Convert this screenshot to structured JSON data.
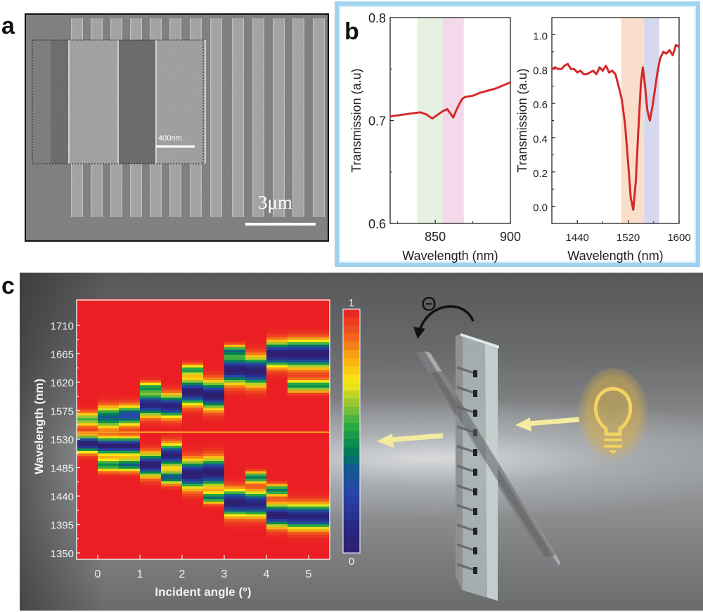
{
  "panels": {
    "a": {
      "label": "a",
      "inset_scale_bar": "400nm",
      "main_scale_bar": "3μm"
    },
    "b": {
      "label": "b"
    },
    "c": {
      "label": "c",
      "rotation_symbol": "Θ",
      "colorbar": {
        "max_label": "1",
        "min_label": "0"
      },
      "icons": [
        "rotation-arrow-icon",
        "light-bulb-icon",
        "incident-light-arrow-icon",
        "transmitted-light-arrow-icon",
        "grating-sample-icon"
      ]
    }
  },
  "colors": {
    "curve": "#d42a2a",
    "band_green": "#e6f1e1",
    "band_pink": "#f4d9ea",
    "band_orange": "#f9dfcb",
    "band_blue": "#d6d8ee",
    "frame": "#9fd3ef",
    "bulb": "#f3d35e",
    "arrow": "#f3eba0"
  },
  "chart_data": [
    {
      "type": "line",
      "id": "b-left",
      "title": "",
      "xlabel": "Wavelength (nm)",
      "ylabel": "Transmission (a.u)",
      "xlim": [
        820,
        900
      ],
      "ylim": [
        0.6,
        0.8
      ],
      "xticks": [
        850,
        900
      ],
      "xtick_labels": [
        "850",
        "900"
      ],
      "yticks": [
        0.6,
        0.7,
        0.8
      ],
      "ytick_labels": [
        "0.6",
        "0.7",
        "0.8"
      ],
      "shaded_bands": [
        {
          "from": 838,
          "to": 855,
          "color": "band_green"
        },
        {
          "from": 855,
          "to": 869,
          "color": "band_pink"
        }
      ],
      "series": [
        {
          "name": "Transmission",
          "x": [
            820,
            825,
            830,
            835,
            840,
            844,
            848,
            852,
            855,
            858,
            860,
            862,
            864,
            866,
            868,
            870,
            875,
            880,
            885,
            890,
            895,
            900
          ],
          "y": [
            0.704,
            0.705,
            0.706,
            0.707,
            0.708,
            0.706,
            0.702,
            0.706,
            0.709,
            0.711,
            0.707,
            0.703,
            0.71,
            0.716,
            0.721,
            0.723,
            0.724,
            0.727,
            0.729,
            0.731,
            0.734,
            0.737
          ]
        }
      ]
    },
    {
      "type": "line",
      "id": "b-right",
      "title": "",
      "xlabel": "Wavelength (nm)",
      "ylabel": "Transmission (a.u)",
      "xlim": [
        1400,
        1600
      ],
      "ylim": [
        -0.1,
        1.1
      ],
      "xticks": [
        1440,
        1520,
        1600
      ],
      "xtick_labels": [
        "1440",
        "1520",
        "1600"
      ],
      "yticks": [
        0.0,
        0.2,
        0.4,
        0.6,
        0.8,
        1.0
      ],
      "ytick_labels": [
        "0.0",
        "0.2",
        "0.4",
        "0.6",
        "0.8",
        "1.0"
      ],
      "shaded_bands": [
        {
          "from": 1509,
          "to": 1545,
          "color": "band_orange"
        },
        {
          "from": 1545,
          "to": 1569,
          "color": "band_blue"
        }
      ],
      "series": [
        {
          "name": "Transmission",
          "x": [
            1400,
            1405,
            1410,
            1415,
            1420,
            1425,
            1430,
            1435,
            1440,
            1445,
            1450,
            1455,
            1460,
            1465,
            1470,
            1475,
            1480,
            1485,
            1490,
            1495,
            1500,
            1505,
            1510,
            1515,
            1520,
            1524,
            1528,
            1532,
            1536,
            1540,
            1543,
            1546,
            1550,
            1554,
            1558,
            1562,
            1566,
            1570,
            1575,
            1580,
            1585,
            1590,
            1595,
            1600
          ],
          "y": [
            0.8,
            0.81,
            0.8,
            0.8,
            0.82,
            0.83,
            0.8,
            0.8,
            0.78,
            0.79,
            0.77,
            0.77,
            0.78,
            0.79,
            0.77,
            0.81,
            0.79,
            0.82,
            0.78,
            0.79,
            0.77,
            0.7,
            0.62,
            0.48,
            0.25,
            0.05,
            -0.02,
            0.15,
            0.45,
            0.72,
            0.81,
            0.72,
            0.56,
            0.5,
            0.58,
            0.68,
            0.78,
            0.86,
            0.9,
            0.89,
            0.91,
            0.88,
            0.94,
            0.93
          ]
        }
      ]
    },
    {
      "type": "heatmap",
      "id": "c-heatmap",
      "title": "",
      "xlabel": "Incident angle (°)",
      "ylabel": "Wavelength (nm)",
      "xlim": [
        -0.5,
        5.5
      ],
      "ylim": [
        1340,
        1750
      ],
      "xticks": [
        0,
        1,
        2,
        3,
        4,
        5
      ],
      "xtick_labels": [
        "0",
        "1",
        "2",
        "3",
        "4",
        "5"
      ],
      "yticks": [
        1350,
        1395,
        1440,
        1485,
        1530,
        1575,
        1620,
        1665,
        1710
      ],
      "ytick_labels": [
        "1350",
        "1395",
        "1440",
        "1485",
        "1530",
        "1575",
        "1620",
        "1665",
        "1710"
      ],
      "colorbar_range": [
        0,
        1
      ],
      "columns_angle": [
        0,
        0.5,
        1,
        1.5,
        2,
        2.5,
        3,
        3.5,
        4,
        4.5,
        5,
        5.5
      ],
      "dips": [
        {
          "angle": 0,
          "dips": [
            {
              "center": 1523,
              "width": 30,
              "depth": 1.0
            },
            {
              "center": 1562,
              "width": 26,
              "depth": 0.45
            }
          ]
        },
        {
          "angle": 0.5,
          "dips": [
            {
              "center": 1520,
              "width": 30,
              "depth": 1.0
            },
            {
              "center": 1565,
              "width": 40,
              "depth": 0.65
            },
            {
              "center": 1490,
              "width": 24,
              "depth": 0.55
            }
          ]
        },
        {
          "angle": 1,
          "dips": [
            {
              "center": 1520,
              "width": 30,
              "depth": 1.0
            },
            {
              "center": 1568,
              "width": 36,
              "depth": 0.75
            },
            {
              "center": 1490,
              "width": 24,
              "depth": 0.65
            }
          ]
        },
        {
          "angle": 1.5,
          "dips": [
            {
              "center": 1585,
              "width": 40,
              "depth": 0.95
            },
            {
              "center": 1490,
              "width": 40,
              "depth": 1.0
            },
            {
              "center": 1612,
              "width": 20,
              "depth": 0.5
            }
          ]
        },
        {
          "angle": 2,
          "dips": [
            {
              "center": 1583,
              "width": 40,
              "depth": 0.95
            },
            {
              "center": 1505,
              "width": 40,
              "depth": 0.95
            },
            {
              "center": 1470,
              "width": 24,
              "depth": 0.7
            }
          ]
        },
        {
          "angle": 2.5,
          "dips": [
            {
              "center": 1605,
              "width": 44,
              "depth": 1.0
            },
            {
              "center": 1475,
              "width": 50,
              "depth": 1.0
            },
            {
              "center": 1640,
              "width": 20,
              "depth": 0.5
            }
          ]
        },
        {
          "angle": 3,
          "dips": [
            {
              "center": 1600,
              "width": 48,
              "depth": 1.0
            },
            {
              "center": 1478,
              "width": 50,
              "depth": 1.0
            },
            {
              "center": 1438,
              "width": 20,
              "depth": 0.6
            }
          ]
        },
        {
          "angle": 3.5,
          "dips": [
            {
              "center": 1640,
              "width": 48,
              "depth": 1.0
            },
            {
              "center": 1430,
              "width": 46,
              "depth": 1.0
            },
            {
              "center": 1670,
              "width": 20,
              "depth": 0.55
            }
          ]
        },
        {
          "angle": 4,
          "dips": [
            {
              "center": 1638,
              "width": 50,
              "depth": 1.0
            },
            {
              "center": 1428,
              "width": 44,
              "depth": 0.95
            },
            {
              "center": 1470,
              "width": 20,
              "depth": 0.6
            }
          ]
        },
        {
          "angle": 4.5,
          "dips": [
            {
              "center": 1665,
              "width": 44,
              "depth": 1.0
            },
            {
              "center": 1410,
              "width": 40,
              "depth": 1.0
            },
            {
              "center": 1450,
              "width": 20,
              "depth": 0.6
            }
          ]
        },
        {
          "angle": 5,
          "dips": [
            {
              "center": 1665,
              "width": 48,
              "depth": 1.0
            },
            {
              "center": 1408,
              "width": 44,
              "depth": 0.95
            },
            {
              "center": 1615,
              "width": 22,
              "depth": 0.55
            }
          ]
        }
      ],
      "horizontal_line_nm": 1541
    }
  ]
}
